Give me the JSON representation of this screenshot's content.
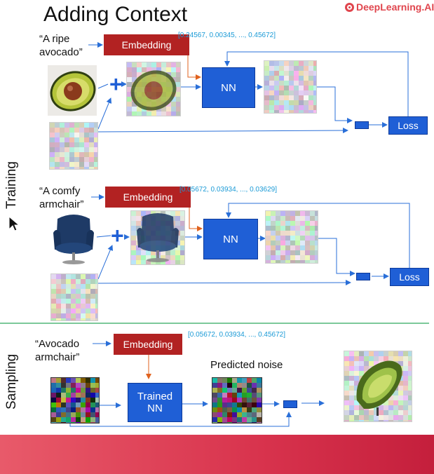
{
  "title": "Adding Context",
  "brand": "DeepLearning.AI",
  "sections": {
    "training_label": "Training",
    "sampling_label": "Sampling"
  },
  "row1": {
    "prompt": "“A ripe avocado”",
    "prompt_line1": "“A ripe",
    "prompt_line2": "avocado”",
    "embedding_label": "Embedding",
    "vector": "[0.24567, 0.00345, ..., 0.45672]",
    "nn_label": "NN",
    "loss_label": "Loss"
  },
  "row2": {
    "prompt_line1": "“A comfy",
    "prompt_line2": "armchair”",
    "embedding_label": "Embedding",
    "vector": "[0.05672, 0.03934, ..., 0.03629]",
    "nn_label": "NN",
    "loss_label": "Loss"
  },
  "sampling": {
    "prompt_line1": "“Avocado",
    "prompt_line2": "armchair”",
    "embedding_label": "Embedding",
    "vector": "[0.05672, 0.03934, ..., 0.45672]",
    "nn_line1": "Trained",
    "nn_line2": "NN",
    "predicted_noise_label": "Predicted noise"
  },
  "colors": {
    "embedding": "#b22222",
    "network": "#1f5fd6",
    "arrow_blue": "#2a6fd8",
    "arrow_orange": "#e0621e",
    "vector_text": "#1a9ad6",
    "divider": "#7cc99a",
    "brand": "#e0454d"
  },
  "icons": [
    "plus-icon",
    "minus-icon",
    "cursor-icon",
    "brand-logo-icon"
  ]
}
